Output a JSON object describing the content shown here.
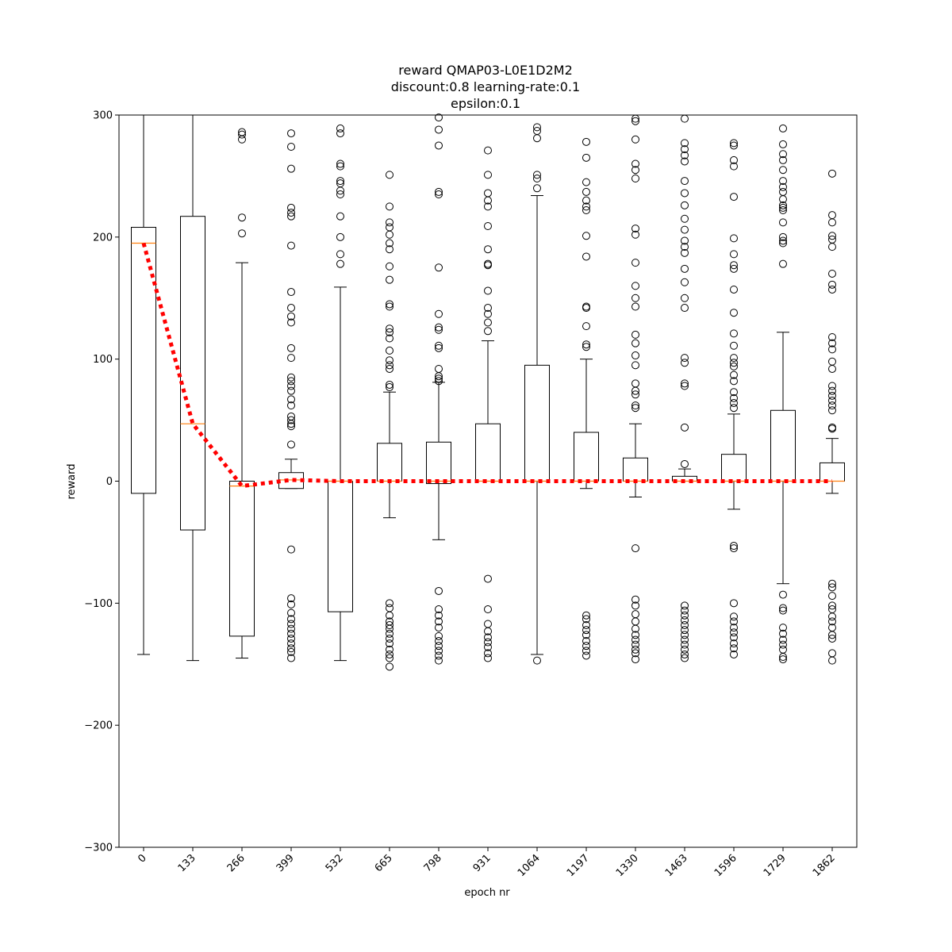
{
  "chart_data": {
    "type": "box",
    "title_lines": [
      "reward QMAP03-L0E1D2M2",
      "discount:0.8 learning-rate:0.1",
      "epsilon:0.1"
    ],
    "xlabel": "epoch nr",
    "ylabel": "reward",
    "ylim": [
      -300,
      300
    ],
    "yticks": [
      -300,
      -200,
      -100,
      0,
      100,
      200,
      300
    ],
    "yticklabels": [
      "−300",
      "−200",
      "−100",
      "0",
      "100",
      "200",
      "300"
    ],
    "categories": [
      "0",
      "133",
      "266",
      "399",
      "532",
      "665",
      "798",
      "931",
      "1064",
      "1197",
      "1330",
      "1463",
      "1596",
      "1729",
      "1862"
    ],
    "colors": {
      "box": "#000000",
      "median": "#ff7f0e",
      "trend": "#ff0000"
    },
    "boxes": [
      {
        "q1": -10,
        "median": 195,
        "q3": 208,
        "whisker_low": -142,
        "whisker_high": 300,
        "outliers": []
      },
      {
        "q1": -40,
        "median": 47,
        "q3": 217,
        "whisker_low": -147,
        "whisker_high": 300,
        "outliers": []
      },
      {
        "q1": -127,
        "median": -4,
        "q3": 0,
        "whisker_low": -145,
        "whisker_high": 179,
        "outliers": [
          286,
          284,
          280,
          216,
          203
        ]
      },
      {
        "q1": -6,
        "median": 1,
        "q3": 7,
        "whisker_low": -6,
        "whisker_high": 18,
        "outliers": [
          285,
          274,
          256,
          224,
          220,
          217,
          193,
          155,
          142,
          135,
          130,
          109,
          101,
          85,
          82,
          78,
          74,
          67,
          62,
          53,
          50,
          47,
          45,
          30,
          -56,
          -96,
          -101,
          -108,
          -113,
          -117,
          -121,
          -125,
          -129,
          -133,
          -137,
          -140,
          -145
        ]
      },
      {
        "q1": -107,
        "median": 0,
        "q3": 0,
        "whisker_low": -147,
        "whisker_high": 159,
        "outliers": [
          289,
          285,
          260,
          258,
          246,
          244,
          238,
          235,
          217,
          200,
          186,
          178
        ]
      },
      {
        "q1": 0,
        "median": 0,
        "q3": 31,
        "whisker_low": -30,
        "whisker_high": 73,
        "outliers": [
          251,
          225,
          212,
          208,
          202,
          195,
          190,
          176,
          165,
          145,
          143,
          125,
          122,
          117,
          107,
          99,
          95,
          92,
          79,
          77,
          -100,
          -104,
          -110,
          -115,
          -118,
          -121,
          -125,
          -129,
          -133,
          -138,
          -142,
          -145,
          -152
        ]
      },
      {
        "q1": -2,
        "median": 0,
        "q3": 32,
        "whisker_low": -48,
        "whisker_high": 81,
        "outliers": [
          298,
          288,
          275,
          237,
          235,
          175,
          137,
          126,
          124,
          111,
          109,
          92,
          86,
          84,
          82,
          -90,
          -105,
          -110,
          -115,
          -120,
          -127,
          -131,
          -135,
          -139,
          -143,
          -147
        ]
      },
      {
        "q1": 0,
        "median": 0,
        "q3": 47,
        "whisker_low": 0,
        "whisker_high": 115,
        "outliers": [
          271,
          251,
          236,
          230,
          225,
          209,
          190,
          178,
          177,
          156,
          142,
          137,
          130,
          123,
          -80,
          -105,
          -117,
          -123,
          -128,
          -132,
          -136,
          -141,
          -145
        ]
      },
      {
        "q1": 0,
        "median": 0,
        "q3": 95,
        "whisker_low": -142,
        "whisker_high": 234,
        "outliers": [
          290,
          287,
          281,
          251,
          248,
          240,
          -147
        ]
      },
      {
        "q1": 0,
        "median": 0,
        "q3": 40,
        "whisker_low": -6,
        "whisker_high": 100,
        "outliers": [
          278,
          265,
          245,
          237,
          230,
          225,
          222,
          201,
          184,
          143,
          142,
          127,
          112,
          110,
          -110,
          -113,
          -118,
          -122,
          -126,
          -131,
          -135,
          -139,
          -143
        ]
      },
      {
        "q1": 0,
        "median": 0,
        "q3": 19,
        "whisker_low": -13,
        "whisker_high": 47,
        "outliers": [
          297,
          295,
          280,
          260,
          255,
          248,
          207,
          202,
          179,
          160,
          150,
          143,
          120,
          113,
          103,
          95,
          80,
          74,
          71,
          62,
          60,
          -55,
          -97,
          -102,
          -109,
          -115,
          -121,
          -126,
          -130,
          -134,
          -138,
          -141,
          -146
        ]
      },
      {
        "q1": 0,
        "median": 0,
        "q3": 4,
        "whisker_low": 0,
        "whisker_high": 10,
        "outliers": [
          297,
          277,
          272,
          267,
          262,
          246,
          236,
          226,
          215,
          206,
          197,
          192,
          187,
          174,
          163,
          150,
          142,
          101,
          97,
          80,
          78,
          44,
          14,
          -102,
          -106,
          -110,
          -114,
          -118,
          -122,
          -126,
          -130,
          -134,
          -138,
          -142,
          -145
        ]
      },
      {
        "q1": 0,
        "median": 0,
        "q3": 22,
        "whisker_low": -23,
        "whisker_high": 55,
        "outliers": [
          277,
          275,
          263,
          258,
          233,
          199,
          186,
          177,
          174,
          157,
          138,
          121,
          111,
          101,
          97,
          94,
          87,
          82,
          73,
          68,
          64,
          60,
          -53,
          -55,
          -100,
          -111,
          -115,
          -120,
          -124,
          -128,
          -133,
          -137,
          -142
        ]
      },
      {
        "q1": 0,
        "median": 0,
        "q3": 58,
        "whisker_low": -84,
        "whisker_high": 122,
        "outliers": [
          289,
          276,
          268,
          263,
          255,
          246,
          241,
          237,
          231,
          226,
          224,
          222,
          212,
          200,
          197,
          195,
          178,
          -93,
          -104,
          -106,
          -120,
          -125,
          -130,
          -134,
          -138,
          -144,
          -146
        ]
      },
      {
        "q1": 0,
        "median": 0,
        "q3": 15,
        "whisker_low": -10,
        "whisker_high": 35,
        "outliers": [
          252,
          218,
          212,
          201,
          198,
          192,
          170,
          161,
          157,
          118,
          113,
          108,
          98,
          92,
          78,
          74,
          70,
          66,
          62,
          58,
          44,
          43,
          -84,
          -87,
          -94,
          -102,
          -105,
          -111,
          -115,
          -120,
          -126,
          -129,
          -141,
          -147
        ]
      }
    ],
    "trend": [
      195,
      47,
      -4,
      1,
      0,
      0,
      0,
      0,
      0,
      0,
      0,
      0,
      0,
      0,
      0
    ]
  }
}
